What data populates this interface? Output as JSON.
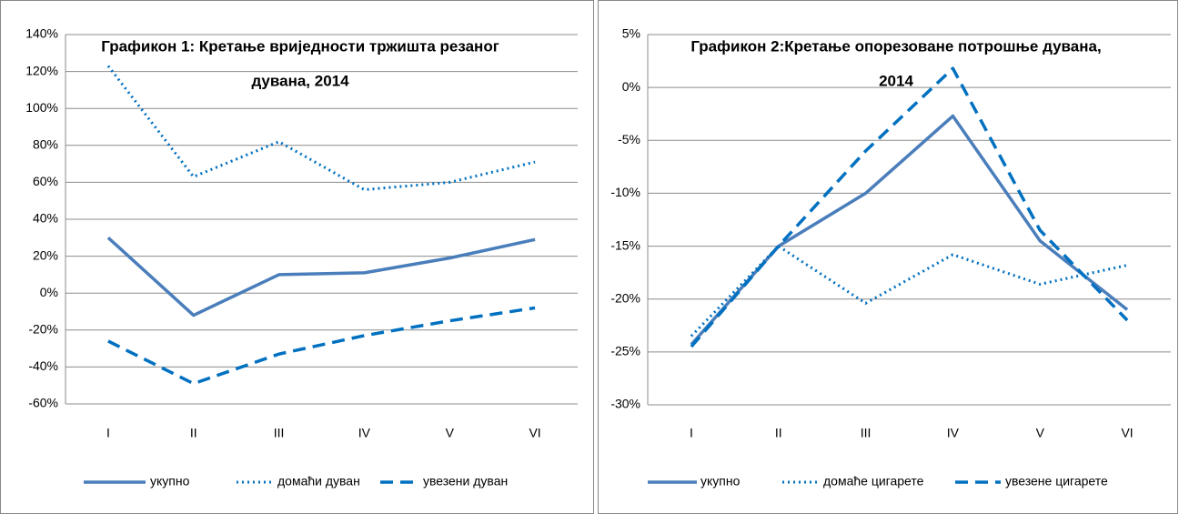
{
  "chart_data": [
    {
      "type": "line",
      "title": [
        "Графикон 1: Кретање вриједности тржишта резаног",
        "дувана, 2014"
      ],
      "categories": [
        "I",
        "II",
        "III",
        "IV",
        "V",
        "VI"
      ],
      "series": [
        {
          "name": "укупно",
          "color": "#4a7ebb",
          "dash": "solid",
          "values": [
            30,
            -12,
            10,
            11,
            19,
            29
          ]
        },
        {
          "name": "домаћи дуван",
          "color": "#0070c0",
          "dash": "dotted",
          "values": [
            123,
            63,
            82,
            56,
            60,
            71
          ]
        },
        {
          "name": "увезени дуван",
          "color": "#0070c0",
          "dash": "dashed",
          "values": [
            -26,
            -49,
            -33,
            -23,
            -15,
            -8
          ]
        }
      ],
      "ylim": [
        -60,
        140
      ],
      "yticks": [
        {
          "value": -60,
          "label": "-60%"
        },
        {
          "value": -40,
          "label": "-40%"
        },
        {
          "value": -20,
          "label": "-20%"
        },
        {
          "value": 0,
          "label": "0%"
        },
        {
          "value": 20,
          "label": "20%"
        },
        {
          "value": 40,
          "label": "40%"
        },
        {
          "value": 60,
          "label": "60%"
        },
        {
          "value": 80,
          "label": "80%"
        },
        {
          "value": 100,
          "label": "100%"
        },
        {
          "value": 120,
          "label": "120%"
        },
        {
          "value": 140,
          "label": "140%"
        }
      ],
      "grid": true,
      "legend": "bottom"
    },
    {
      "type": "line",
      "title": [
        "Графикон 2:Кретање опорезоване потрошње дувана,",
        "2014"
      ],
      "categories": [
        "I",
        "II",
        "III",
        "IV",
        "V",
        "VI"
      ],
      "series": [
        {
          "name": "укупно",
          "color": "#4a7ebb",
          "dash": "solid",
          "values": [
            -24.3,
            -15,
            -10,
            -2.7,
            -14.5,
            -21
          ]
        },
        {
          "name": "домаће цигарете",
          "color": "#0070c0",
          "dash": "dotted",
          "values": [
            -23.5,
            -15,
            -20.4,
            -15.8,
            -18.6,
            -16.8
          ]
        },
        {
          "name": "увезене цигарете",
          "color": "#0070c0",
          "dash": "dashed",
          "values": [
            -24.5,
            -15,
            -6,
            1.8,
            -13.5,
            -22
          ]
        }
      ],
      "ylim": [
        -30,
        5
      ],
      "yticks": [
        {
          "value": -30,
          "label": "-30%"
        },
        {
          "value": -25,
          "label": "-25%"
        },
        {
          "value": -20,
          "label": "-20%"
        },
        {
          "value": -15,
          "label": "-15%"
        },
        {
          "value": -10,
          "label": "-10%"
        },
        {
          "value": -5,
          "label": "-5%"
        },
        {
          "value": 0,
          "label": "0%"
        },
        {
          "value": 5,
          "label": "5%"
        }
      ],
      "grid": true,
      "legend": "bottom"
    }
  ]
}
